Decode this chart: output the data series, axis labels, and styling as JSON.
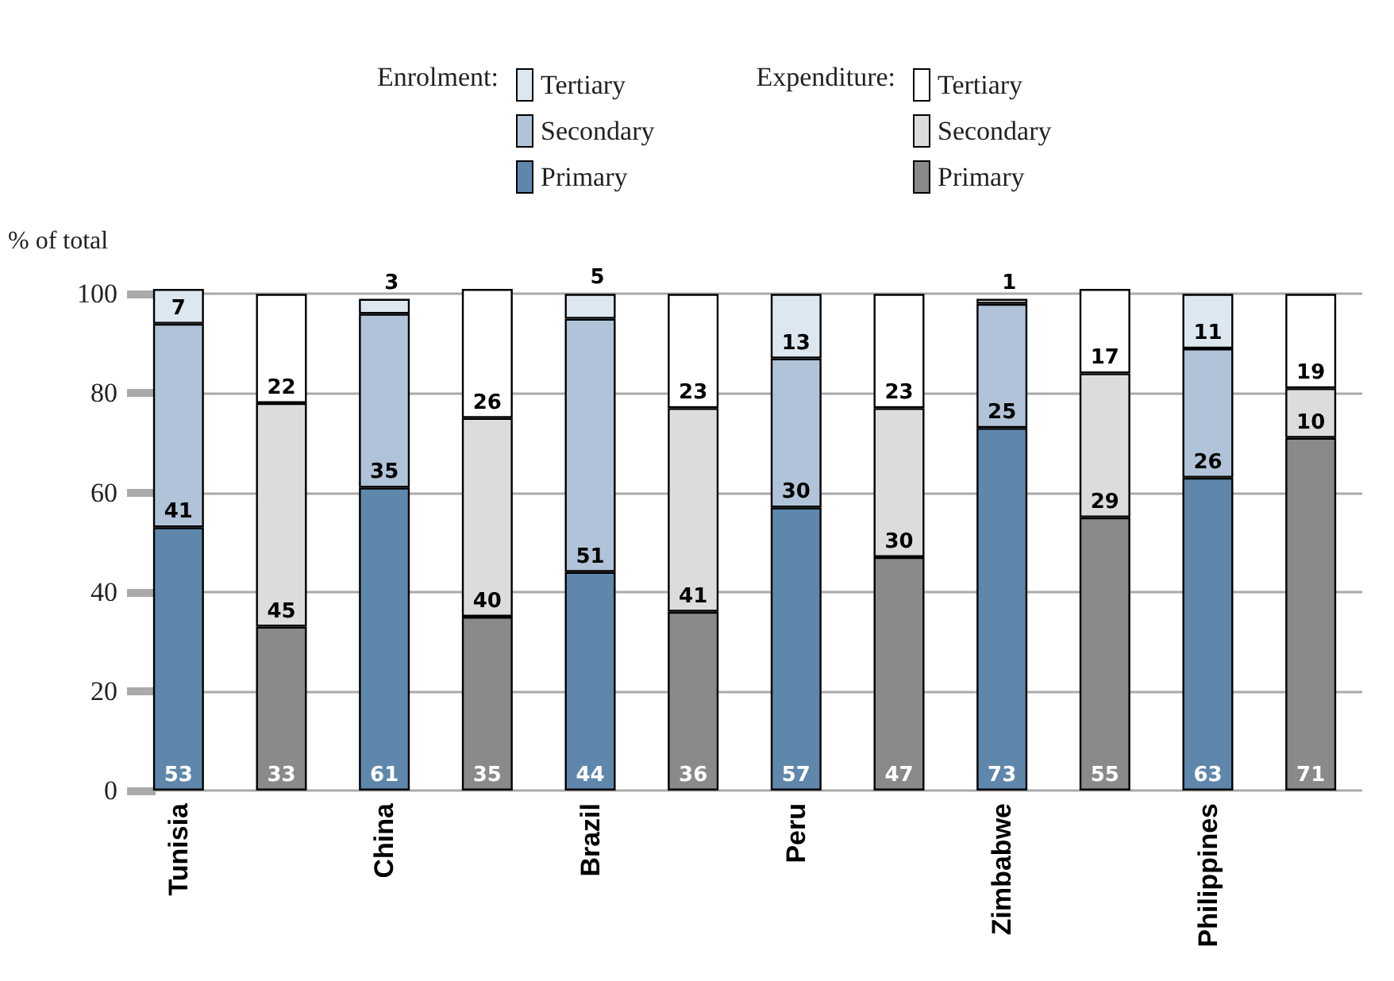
{
  "chart_data": {
    "type": "bar",
    "stacked": true,
    "ylabel": "% of total",
    "categories": [
      "Tunisia",
      null,
      "China",
      null,
      "Brazil",
      null,
      "Peru",
      null,
      "Zimbabwe",
      null,
      "Philippines",
      null
    ],
    "annotations": [
      "Enrolment:",
      "Expenditure:"
    ],
    "series": [
      {
        "name": "Primary",
        "color": "#5f87ab",
        "values": [
          53,
          null,
          61,
          null,
          44,
          null,
          57,
          null,
          73,
          null,
          63,
          null
        ]
      },
      {
        "name": "Secondary",
        "color": "#b0c3d8",
        "values": [
          41,
          null,
          35,
          null,
          51,
          null,
          30,
          null,
          25,
          null,
          26,
          null
        ]
      },
      {
        "name": "Tertiary",
        "color": "#dde7f0",
        "values": [
          7,
          null,
          3,
          null,
          5,
          null,
          13,
          null,
          1,
          null,
          11,
          null
        ]
      },
      {
        "name": "Primary",
        "color": "#8a8a8a",
        "values": [
          null,
          33,
          null,
          35,
          null,
          36,
          null,
          47,
          null,
          55,
          null,
          71
        ]
      },
      {
        "name": "Secondary",
        "color": "#dcdcdc",
        "values": [
          null,
          45,
          null,
          40,
          null,
          41,
          null,
          30,
          null,
          29,
          null,
          10
        ]
      },
      {
        "name": "Tertiary",
        "color": "#ffffff",
        "values": [
          null,
          22,
          null,
          26,
          null,
          23,
          null,
          23,
          null,
          17,
          null,
          19
        ]
      }
    ],
    "ylim": [
      0,
      101
    ],
    "yticks": [
      0,
      20,
      40,
      60,
      80,
      100
    ],
    "grid": "y",
    "data_labels": true,
    "legend": "top"
  }
}
